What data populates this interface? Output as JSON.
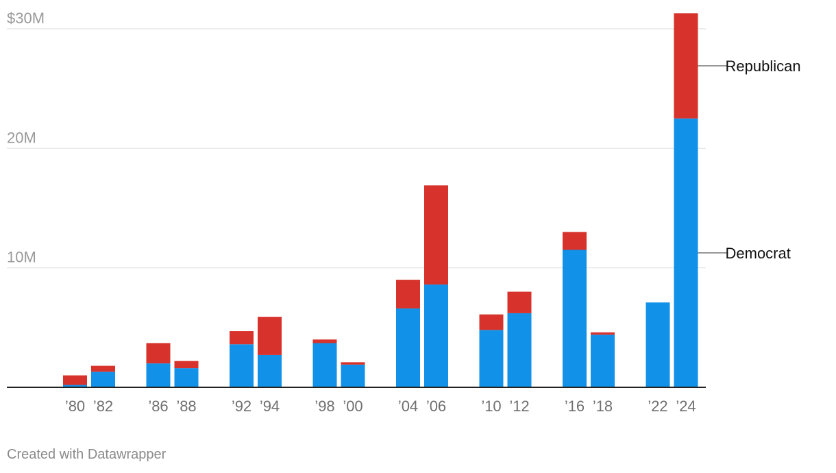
{
  "credit": "Created with Datawrapper",
  "colors": {
    "democrat": "#1192e8",
    "republican": "#d7322b",
    "gridline": "#e2e2e2",
    "baseline": "#222222"
  },
  "chart_data": {
    "type": "bar",
    "stacked": true,
    "title": "",
    "xlabel": "",
    "ylabel": "",
    "ylim": [
      0,
      30000000
    ],
    "y_ticks": [
      {
        "value": 10000000,
        "label": "10M"
      },
      {
        "value": 20000000,
        "label": "20M"
      },
      {
        "value": 30000000,
        "label": "$30M"
      }
    ],
    "grid": true,
    "legend_placement": "right (direct labels)",
    "categories": [
      "’80",
      "’82",
      "’86",
      "’88",
      "’92",
      "’94",
      "’98",
      "’00",
      "’04",
      "’06",
      "’10",
      "’12",
      "’16",
      "’18",
      "’22",
      "’24"
    ],
    "series": [
      {
        "name": "Democrat",
        "color": "#1192e8",
        "values": [
          200000,
          1300000,
          2000000,
          1600000,
          3600000,
          2700000,
          3700000,
          1900000,
          6600000,
          8600000,
          4800000,
          6200000,
          11500000,
          4400000,
          7100000,
          22500000
        ]
      },
      {
        "name": "Republican",
        "color": "#d7322b",
        "values": [
          800000,
          500000,
          1700000,
          600000,
          1100000,
          3200000,
          300000,
          200000,
          2400000,
          8300000,
          1300000,
          1800000,
          1500000,
          200000,
          0,
          8800000
        ]
      }
    ]
  }
}
